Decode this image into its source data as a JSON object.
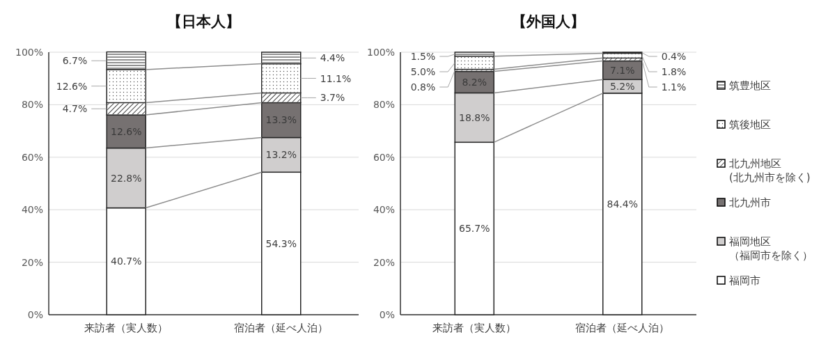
{
  "chart_data": [
    {
      "type": "bar",
      "title": "【日本人】",
      "categories": [
        "来訪者（実人数）",
        "宿泊者（延べ人泊）"
      ],
      "stacked": true,
      "ylim": [
        0,
        100
      ],
      "yticks": [
        {
          "value": 0,
          "label": "0%"
        },
        {
          "value": 20,
          "label": "20%"
        },
        {
          "value": 40,
          "label": "40%"
        },
        {
          "value": 60,
          "label": "60%"
        },
        {
          "value": 80,
          "label": "80%"
        },
        {
          "value": 100,
          "label": "100%"
        }
      ],
      "grid": "y",
      "legend": false,
      "series": [
        {
          "color": "#ffffff",
          "values": [
            40.7,
            54.3
          ],
          "value_labels": [
            "40.7%",
            "54.3%"
          ]
        },
        {
          "color": "#d0cece",
          "values": [
            22.8,
            13.2
          ],
          "value_labels": [
            "22.8%",
            "13.2%"
          ]
        },
        {
          "color": "#767171",
          "values": [
            12.6,
            13.3
          ],
          "value_labels": [
            "12.6%",
            "13.3%"
          ]
        },
        {
          "color": "#ffffff",
          "values": [
            4.7,
            3.7
          ],
          "value_labels": [
            "4.7%",
            "3.7%"
          ]
        },
        {
          "color": "#ffffff",
          "values": [
            12.6,
            11.1
          ],
          "value_labels": [
            "12.6%",
            "11.1%"
          ]
        },
        {
          "color": "#ffffff",
          "values": [
            6.7,
            4.4
          ],
          "value_labels": [
            "6.7%",
            "4.4%"
          ]
        }
      ]
    },
    {
      "type": "bar",
      "title": "【外国人】",
      "categories": [
        "来訪者（実人数）",
        "宿泊者（延べ人泊）"
      ],
      "stacked": true,
      "ylim": [
        0,
        100
      ],
      "yticks": [
        {
          "value": 0,
          "label": "0%"
        },
        {
          "value": 20,
          "label": "20%"
        },
        {
          "value": 40,
          "label": "40%"
        },
        {
          "value": 60,
          "label": "60%"
        },
        {
          "value": 80,
          "label": "80%"
        },
        {
          "value": 100,
          "label": "100%"
        }
      ],
      "grid": "y",
      "legend": "right",
      "series": [
        {
          "name": "福岡市",
          "color": "#ffffff",
          "values": [
            65.7,
            84.4
          ],
          "value_labels": [
            "65.7%",
            "84.4%"
          ]
        },
        {
          "name": "福岡地区（福岡市を除く）",
          "color": "#d0cece",
          "values": [
            18.8,
            5.2
          ],
          "value_labels": [
            "18.8%",
            "5.2%"
          ]
        },
        {
          "name": "北九州市",
          "color": "#767171",
          "values": [
            8.2,
            7.1
          ],
          "value_labels": [
            "8.2%",
            "7.1%"
          ]
        },
        {
          "name": "北九州地区(北九州市を除く)",
          "color": "#ffffff",
          "values": [
            0.8,
            1.1
          ],
          "value_labels": [
            "0.8%",
            "1.1%"
          ]
        },
        {
          "name": "筑後地区",
          "color": "#ffffff",
          "values": [
            5.0,
            1.8
          ],
          "value_labels": [
            "5.0%",
            "1.8%"
          ]
        },
        {
          "name": "筑豊地区",
          "color": "#ffffff",
          "values": [
            1.5,
            0.4
          ],
          "value_labels": [
            "1.5%",
            "0.4%"
          ]
        }
      ]
    }
  ]
}
